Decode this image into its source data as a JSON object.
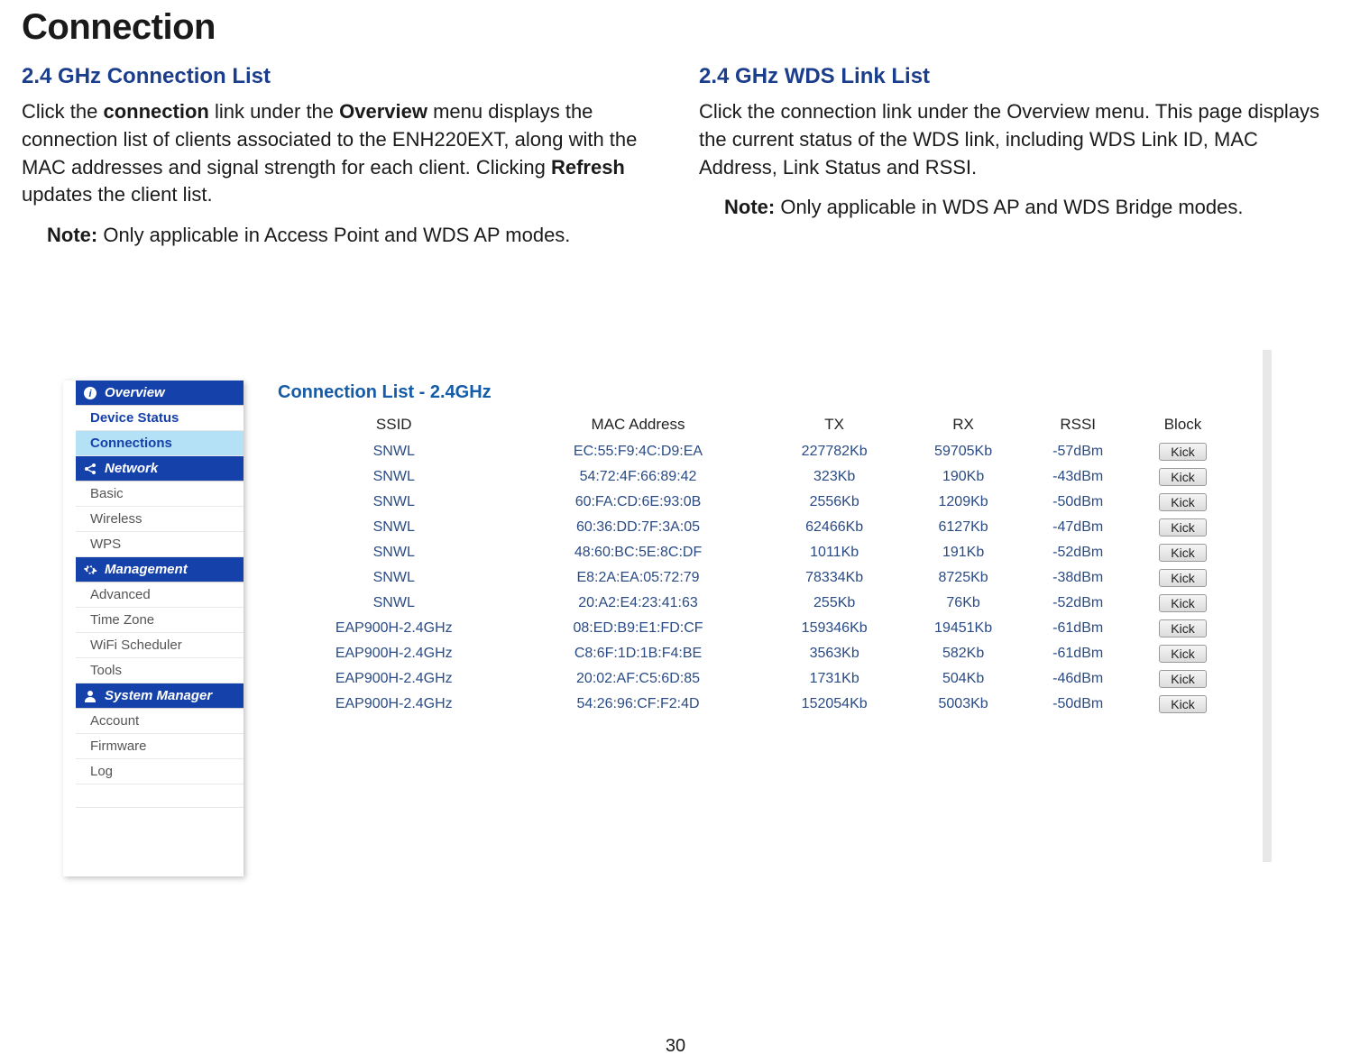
{
  "page_title": "Connection",
  "page_number": "30",
  "left": {
    "heading": "2.4 GHz Connection List",
    "para": "Click the {b}connection{/b} link under the {b}Overview{/b} menu displays the connection list of clients associated to the ENH220EXT, along with the MAC addresses and signal strength for each client. Clicking {b}Refresh{/b} updates the client list.",
    "note_label": "Note:",
    "note_text": " Only applicable in Access Point and WDS AP modes."
  },
  "right": {
    "heading": "2.4 GHz WDS Link List",
    "para": "Click the connection link under the Overview menu. This page displays the current status of the WDS link, including WDS Link ID, MAC Address, Link Status and RSSI.",
    "note_label": "Note:",
    "note_text": " Only applicable in WDS AP and WDS Bridge modes."
  },
  "sidebar": {
    "sections": [
      {
        "label": "Overview",
        "icon": "info",
        "items": [
          {
            "label": "Device Status",
            "active": false,
            "blue": true
          },
          {
            "label": "Connections",
            "active": true,
            "blue": false
          }
        ]
      },
      {
        "label": "Network",
        "icon": "share",
        "items": [
          {
            "label": "Basic",
            "active": false,
            "blue": false
          },
          {
            "label": "Wireless",
            "active": false,
            "blue": false
          },
          {
            "label": "WPS",
            "active": false,
            "blue": false
          }
        ]
      },
      {
        "label": "Management",
        "icon": "gear",
        "items": [
          {
            "label": "Advanced",
            "active": false,
            "blue": false
          },
          {
            "label": "Time Zone",
            "active": false,
            "blue": false
          },
          {
            "label": "WiFi Scheduler",
            "active": false,
            "blue": false
          },
          {
            "label": "Tools",
            "active": false,
            "blue": false
          }
        ]
      },
      {
        "label": "System Manager",
        "icon": "person",
        "items": [
          {
            "label": "Account",
            "active": false,
            "blue": false
          },
          {
            "label": "Firmware",
            "active": false,
            "blue": false
          },
          {
            "label": "Log",
            "active": false,
            "blue": false
          }
        ]
      }
    ]
  },
  "connection_table": {
    "title": "Connection List - 2.4GHz",
    "columns": [
      "SSID",
      "MAC Address",
      "TX",
      "RX",
      "RSSI",
      "Block"
    ],
    "kick_label": "Kick",
    "rows": [
      [
        "SNWL",
        "EC:55:F9:4C:D9:EA",
        "227782Kb",
        "59705Kb",
        "-57dBm"
      ],
      [
        "SNWL",
        "54:72:4F:66:89:42",
        "323Kb",
        "190Kb",
        "-43dBm"
      ],
      [
        "SNWL",
        "60:FA:CD:6E:93:0B",
        "2556Kb",
        "1209Kb",
        "-50dBm"
      ],
      [
        "SNWL",
        "60:36:DD:7F:3A:05",
        "62466Kb",
        "6127Kb",
        "-47dBm"
      ],
      [
        "SNWL",
        "48:60:BC:5E:8C:DF",
        "1011Kb",
        "191Kb",
        "-52dBm"
      ],
      [
        "SNWL",
        "E8:2A:EA:05:72:79",
        "78334Kb",
        "8725Kb",
        "-38dBm"
      ],
      [
        "SNWL",
        "20:A2:E4:23:41:63",
        "255Kb",
        "76Kb",
        "-52dBm"
      ],
      [
        "EAP900H-2.4GHz",
        "08:ED:B9:E1:FD:CF",
        "159346Kb",
        "19451Kb",
        "-61dBm"
      ],
      [
        "EAP900H-2.4GHz",
        "C8:6F:1D:1B:F4:BE",
        "3563Kb",
        "582Kb",
        "-61dBm"
      ],
      [
        "EAP900H-2.4GHz",
        "20:02:AF:C5:6D:85",
        "1731Kb",
        "504Kb",
        "-46dBm"
      ],
      [
        "EAP900H-2.4GHz",
        "54:26:96:CF:F2:4D",
        "152054Kb",
        "5003Kb",
        "-50dBm"
      ]
    ]
  },
  "colors": {
    "heading_blue": "#1b3e8c",
    "nav_blue": "#1541aa",
    "active_bg": "#b5e1f7",
    "table_text": "#2a4b84",
    "panel_title": "#145ba8"
  }
}
